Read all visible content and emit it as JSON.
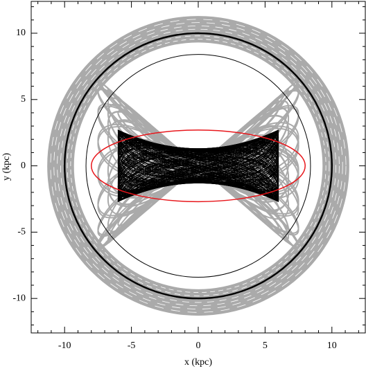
{
  "chart_data": {
    "type": "orbit",
    "xlabel": "x (kpc)",
    "ylabel": "y (kpc)",
    "xlim": [
      -12.5,
      12.5
    ],
    "ylim": [
      -12.6,
      12.4
    ],
    "xticks": [
      -10,
      -5,
      0,
      5,
      10
    ],
    "yticks": [
      -10,
      -5,
      0,
      5,
      10
    ],
    "xminorticks": [
      -12,
      -11,
      -9,
      -8,
      -7,
      -6,
      -4,
      -3,
      -2,
      -1,
      1,
      2,
      3,
      4,
      6,
      7,
      8,
      9,
      11,
      12
    ],
    "yminorticks": [
      -12,
      -11,
      -9,
      -8,
      -7,
      -6,
      -4,
      -3,
      -2,
      -1,
      1,
      2,
      3,
      4,
      6,
      7,
      8,
      9,
      11,
      12
    ],
    "orbit_band": {
      "color": "#aaaaaa",
      "r_min": 9.3,
      "r_max": 11.3
    },
    "loop_orbits": {
      "color": "#aaaaaa",
      "half_length": 7.5,
      "half_width": 6.5
    },
    "bar_orbits": {
      "color": "#000000",
      "half_length": 6,
      "half_width_mid": 1.3,
      "half_width_end": 2.7
    },
    "circles": [
      {
        "r": 10,
        "color": "#000000"
      },
      {
        "r": 8.4,
        "color": "#000000"
      }
    ],
    "ellipse": {
      "a": 8,
      "b": 2.7,
      "color": "#e8161b"
    }
  }
}
